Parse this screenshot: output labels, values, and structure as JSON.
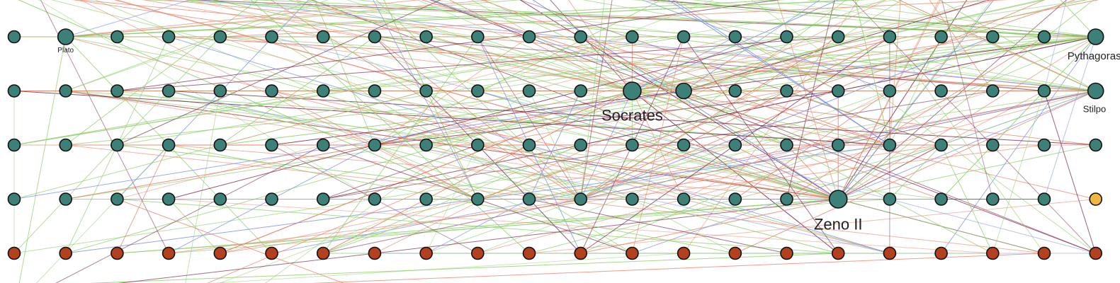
{
  "graph": {
    "colors": {
      "background": "#ffffff",
      "node_teal": "#3d8078",
      "node_brown": "#b5401d",
      "node_gold": "#f0b640",
      "node_stroke": "#111111",
      "edge_red": "#e8826a",
      "edge_green": "#8fcd6d",
      "edge_blue": "#7c8fe3",
      "edge_dark": "#7a2a4a"
    },
    "grid": {
      "columns": 22,
      "rows": 5
    },
    "special_nodes": [
      {
        "row": 0,
        "col": 1,
        "size": "medium",
        "label": "Plato"
      },
      {
        "row": 0,
        "col": 21,
        "size": "medium",
        "label": "Pythagoras"
      },
      {
        "row": 1,
        "col": 12,
        "size": "large",
        "label": "Socrates"
      },
      {
        "row": 1,
        "col": 13,
        "size": "medium",
        "label": ""
      },
      {
        "row": 1,
        "col": 21,
        "size": "medium",
        "label": "Stilpo"
      },
      {
        "row": 3,
        "col": 16,
        "size": "large",
        "label": "Zeno II"
      }
    ],
    "gold_node": {
      "row": 3,
      "col": 21
    }
  }
}
